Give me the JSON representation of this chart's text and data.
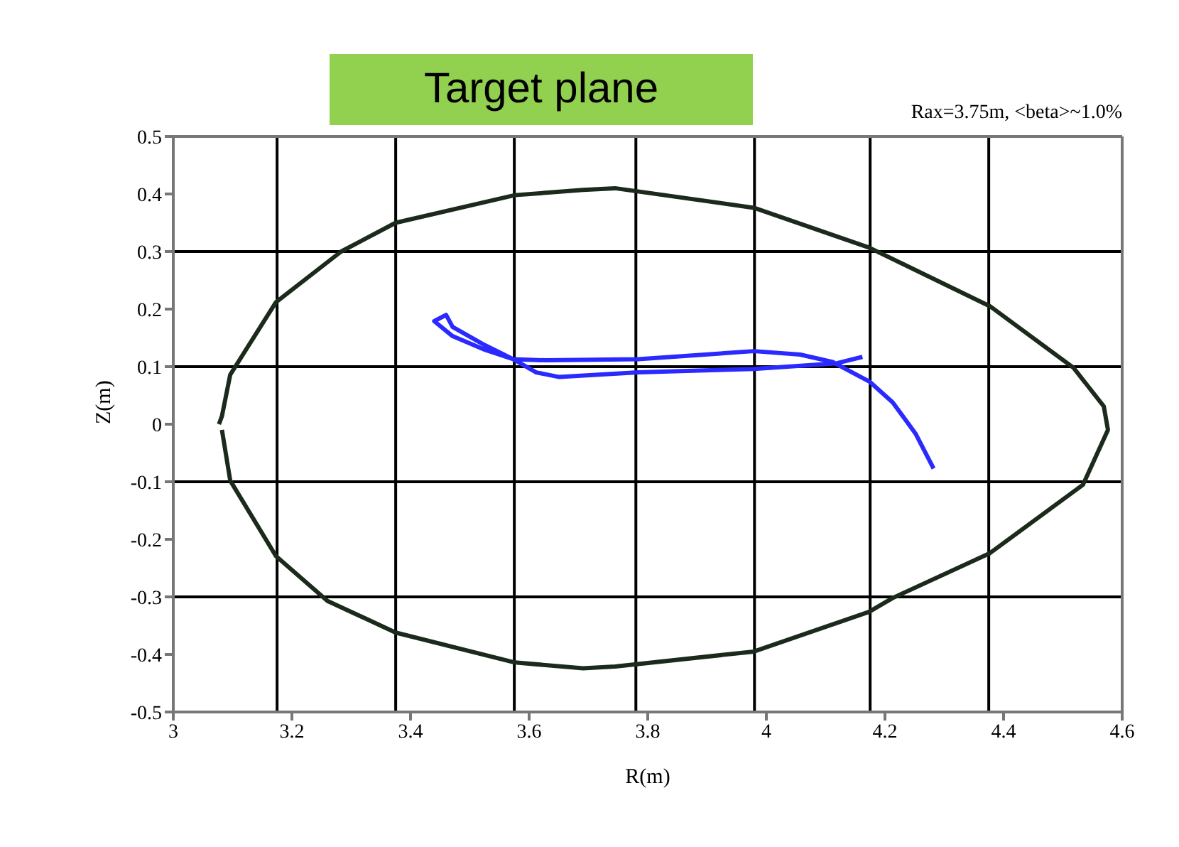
{
  "chart_data": {
    "type": "line",
    "title": "Target plane",
    "xlabel": "R(m)",
    "ylabel": "Z(m)",
    "annotations": [
      "Rax=3.75m, <beta>~1.0%"
    ],
    "marker": "none",
    "xlim": [
      3,
      4.6
    ],
    "xticks": [
      3,
      3.2,
      3.4,
      3.6,
      3.8,
      4,
      4.2,
      4.4,
      4.6
    ],
    "ylim": [
      -0.5,
      0.5
    ],
    "yticks": [
      -0.5,
      -0.4,
      -0.3,
      -0.2,
      -0.1,
      0,
      0.1,
      0.2,
      0.3,
      0.4,
      0.5
    ],
    "ref_lines": [
      {
        "axis": "x",
        "value": 3.175,
        "label": null,
        "color": "#000000"
      },
      {
        "axis": "x",
        "value": 3.375,
        "label": null,
        "color": "#000000"
      },
      {
        "axis": "x",
        "value": 3.575,
        "label": null,
        "color": "#000000"
      },
      {
        "axis": "x",
        "value": 3.78,
        "label": null,
        "color": "#000000"
      },
      {
        "axis": "x",
        "value": 3.98,
        "label": null,
        "color": "#000000"
      },
      {
        "axis": "x",
        "value": 4.175,
        "label": null,
        "color": "#000000"
      },
      {
        "axis": "x",
        "value": 4.375,
        "label": null,
        "color": "#000000"
      },
      {
        "axis": "y",
        "value": 0.3,
        "label": null,
        "color": "#000000"
      },
      {
        "axis": "y",
        "value": 0.1,
        "label": null,
        "color": "#000000"
      },
      {
        "axis": "y",
        "value": -0.1,
        "label": null,
        "color": "#000000"
      },
      {
        "axis": "y",
        "value": -0.3,
        "label": null,
        "color": "#000000"
      }
    ],
    "series": [
      {
        "color": "#1c2a1c",
        "x": [
          3.077,
          3.082,
          3.096,
          3.173,
          3.283,
          3.375,
          3.576,
          3.691,
          3.745,
          3.979,
          4.173,
          4.377,
          4.518,
          4.569,
          4.576,
          4.534,
          4.377,
          4.213,
          4.173,
          3.979,
          3.745,
          3.691,
          3.576,
          3.375,
          3.26,
          3.173,
          3.096,
          3.082
        ],
        "values": [
          0,
          0.014,
          0.086,
          0.212,
          0.3,
          0.35,
          0.398,
          0.407,
          0.41,
          0.376,
          0.307,
          0.205,
          0.098,
          0.031,
          -0.01,
          -0.105,
          -0.224,
          -0.302,
          -0.326,
          -0.395,
          -0.421,
          -0.424,
          -0.414,
          -0.362,
          -0.307,
          -0.229,
          -0.098,
          -0.01
        ]
      },
      {
        "color": "#2a2aff",
        "x": [
          4.162,
          4.119,
          3.979,
          3.784,
          3.651,
          3.612,
          3.573,
          3.526,
          3.471,
          3.46,
          3.44,
          3.471,
          3.526,
          3.573,
          3.628,
          3.784,
          3.979,
          4.057,
          4.112,
          4.174,
          4.213,
          4.252,
          4.282
        ],
        "values": [
          0.117,
          0.106,
          0.096,
          0.09,
          0.082,
          0.09,
          0.113,
          0.137,
          0.169,
          0.19,
          0.179,
          0.153,
          0.129,
          0.113,
          0.111,
          0.113,
          0.127,
          0.121,
          0.108,
          0.074,
          0.038,
          -0.017,
          -0.077
        ]
      }
    ]
  }
}
